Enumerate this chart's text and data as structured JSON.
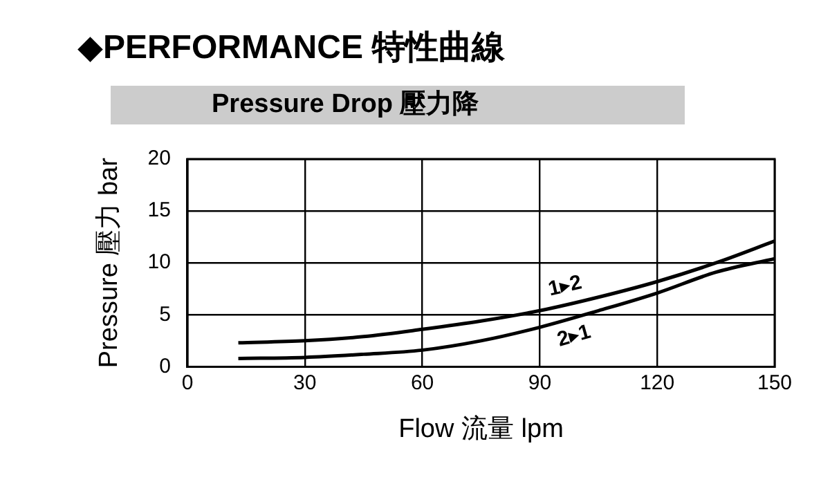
{
  "chart_data": {
    "type": "line",
    "title": "◆PERFORMANCE 特性曲線",
    "subtitle": "Pressure Drop 壓力降",
    "xlabel": "Flow 流量 lpm",
    "ylabel": "Pressure 壓力 bar",
    "x": [
      13,
      30,
      45,
      60,
      75,
      90,
      105,
      120,
      135,
      150
    ],
    "series": [
      {
        "name": "1▸2",
        "color": "#000000",
        "values": [
          2.3,
          2.5,
          2.9,
          3.6,
          4.4,
          5.4,
          6.7,
          8.2,
          10.0,
          12.1
        ]
      },
      {
        "name": "2▸1",
        "color": "#000000",
        "values": [
          0.8,
          0.9,
          1.2,
          1.6,
          2.5,
          3.8,
          5.4,
          7.1,
          9.1,
          10.4
        ]
      }
    ],
    "xlim": [
      0,
      150
    ],
    "xticks": [
      0,
      30,
      60,
      90,
      120,
      150
    ],
    "ylim": [
      0,
      20
    ],
    "yticks": [
      0,
      5,
      10,
      15,
      20
    ],
    "grid": true,
    "legend": false,
    "marker": "none",
    "line_style": "solid"
  }
}
